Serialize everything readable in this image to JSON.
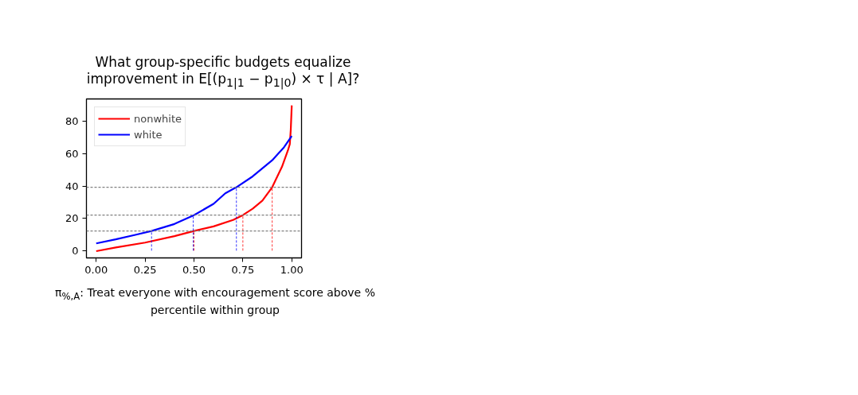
{
  "chart_data": {
    "type": "line",
    "title": "What group-specific budgets equalize improvement in E[(p$_{1|1}$ − p$_{1|0}$) × τ | A]?",
    "xlabel": "π$_{%,A}$: Treat everyone with encouragement score above % percentile within group",
    "series": [
      {
        "name": "nonwhite",
        "color": "#ff0000",
        "x": [
          0,
          0.1,
          0.25,
          0.4,
          0.5,
          0.6,
          0.7,
          0.75,
          0.8,
          0.85,
          0.9,
          0.95,
          0.98,
          0.99,
          0.995,
          1.0
        ],
        "values": [
          -0.3,
          2,
          5,
          9,
          12.2,
          15,
          19,
          22,
          26,
          31,
          39.3,
          52,
          62,
          66,
          75,
          90
        ]
      },
      {
        "name": "white",
        "color": "#0000ff",
        "x": [
          0,
          0.1,
          0.2,
          0.283,
          0.4,
          0.5,
          0.6,
          0.66,
          0.717,
          0.8,
          0.9,
          0.93,
          0.96,
          1.0
        ],
        "values": [
          4.5,
          7,
          9.8,
          12.2,
          16.5,
          22,
          29,
          35.5,
          39.3,
          46,
          56,
          60,
          64,
          71
        ]
      },
      {
        "color": "#0000ff",
        "line_style": "dashed",
        "x": [
          0.283,
          0.283
        ],
        "values": [
          0,
          12.2
        ]
      },
      {
        "color": "#0000ff",
        "line_style": "dashed",
        "x": [
          0.496,
          0.496
        ],
        "values": [
          0,
          22
        ]
      },
      {
        "color": "#0000ff",
        "line_style": "dashed",
        "x": [
          0.717,
          0.717
        ],
        "values": [
          0,
          39.3
        ]
      },
      {
        "color": "#ff0000",
        "line_style": "dashed",
        "x": [
          0.5,
          0.5
        ],
        "values": [
          0,
          12.2
        ]
      },
      {
        "color": "#ff0000",
        "line_style": "dashed",
        "x": [
          0.75,
          0.75
        ],
        "values": [
          0,
          22
        ]
      },
      {
        "color": "#ff0000",
        "line_style": "dashed",
        "x": [
          0.9,
          0.9
        ],
        "values": [
          0,
          39.3
        ]
      }
    ],
    "ref_lines": [
      {
        "axis": "y",
        "value": 12.2,
        "color": "#808080",
        "line_style": "dashed"
      },
      {
        "axis": "y",
        "value": 22,
        "color": "#808080",
        "line_style": "dashed"
      },
      {
        "axis": "y",
        "value": 39.3,
        "color": "#808080",
        "line_style": "dashed"
      }
    ],
    "xlim": [
      -0.05,
      1.05
    ],
    "ylim": [
      -4.5,
      94
    ],
    "xticks": [
      {
        "value": 0,
        "label": "0.00"
      },
      {
        "value": 0.25,
        "label": "0.25"
      },
      {
        "value": 0.5,
        "label": "0.50"
      },
      {
        "value": 0.75,
        "label": "0.75"
      },
      {
        "value": 1,
        "label": "1.00"
      }
    ],
    "yticks": [
      0,
      20,
      40,
      60,
      80
    ],
    "legend": "top left",
    "grid": false,
    "line_style": "solid",
    "marker": "none"
  }
}
